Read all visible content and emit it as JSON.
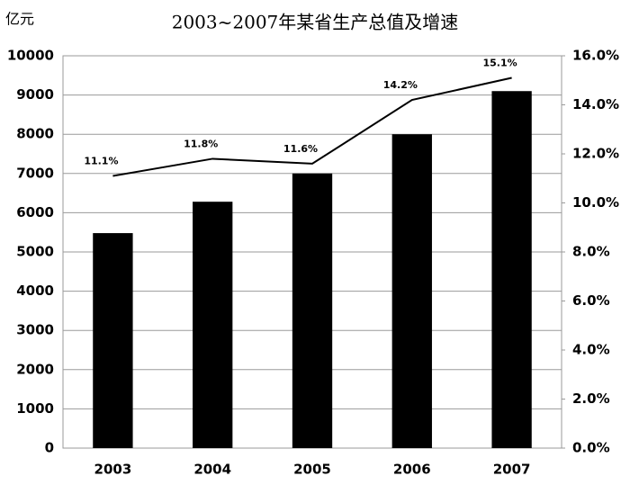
{
  "chart_data": {
    "type": "bar",
    "title": "2003~2007年某省生产总值及增速",
    "y_label": "亿元",
    "categories": [
      "2003",
      "2004",
      "2005",
      "2006",
      "2007"
    ],
    "series": [
      {
        "type": "bar",
        "color": "#000000",
        "values": [
          5480,
          6280,
          7000,
          8000,
          9100
        ]
      },
      {
        "type": "line",
        "axis": "y2",
        "color": "#000000",
        "values": [
          11.1,
          11.8,
          11.6,
          14.2,
          15.1
        ],
        "value_labels": [
          "11.1%",
          "11.8%",
          "11.6%",
          "14.2%",
          "15.1%"
        ]
      }
    ],
    "ylim": [
      0,
      10000
    ],
    "yticks": [
      0,
      1000,
      2000,
      3000,
      4000,
      5000,
      6000,
      7000,
      8000,
      9000,
      10000
    ],
    "y2lim": [
      0,
      16
    ],
    "y2ticks": [
      {
        "value": 0,
        "label": "0.0%"
      },
      {
        "value": 2,
        "label": "2.0%"
      },
      {
        "value": 4,
        "label": "4.0%"
      },
      {
        "value": 6,
        "label": "6.0%"
      },
      {
        "value": 8,
        "label": "8.0%"
      },
      {
        "value": 10,
        "label": "10.0%"
      },
      {
        "value": 12,
        "label": "12.0%"
      },
      {
        "value": 14,
        "label": "14.0%"
      },
      {
        "value": 16,
        "label": "16.0%"
      }
    ],
    "grid": true
  }
}
